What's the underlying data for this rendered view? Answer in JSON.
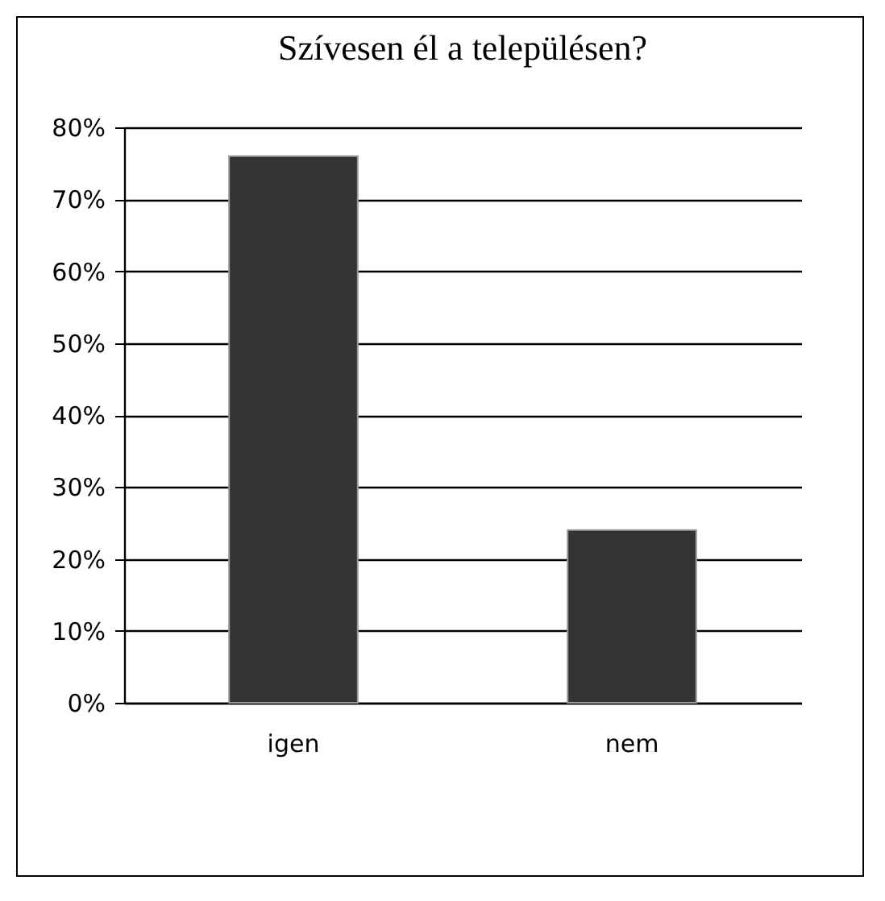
{
  "chart_data": {
    "type": "bar",
    "title": "Szívesen él a településen?",
    "categories": [
      "igen",
      "nem"
    ],
    "values": [
      76,
      24
    ],
    "color": "#333333",
    "ylim": [
      0,
      80
    ],
    "yticks": [
      {
        "value": 0,
        "label": "0%"
      },
      {
        "value": 10,
        "label": "10%"
      },
      {
        "value": 20,
        "label": "20%"
      },
      {
        "value": 30,
        "label": "30%"
      },
      {
        "value": 40,
        "label": "40%"
      },
      {
        "value": 50,
        "label": "50%"
      },
      {
        "value": 60,
        "label": "60%"
      },
      {
        "value": 70,
        "label": "70%"
      },
      {
        "value": 80,
        "label": "80%"
      }
    ],
    "grid": true
  }
}
